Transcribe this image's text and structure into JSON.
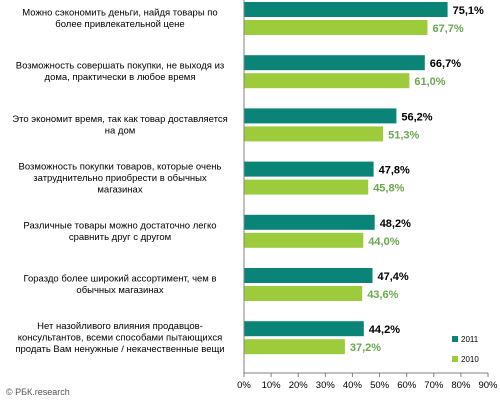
{
  "source": "© РБК.research",
  "colors": {
    "series_2011": "#0b8478",
    "series_2010": "#9ccc3c",
    "value_2011_text": "#000000",
    "value_2010_text": "#6aa84f",
    "axis": "#808080"
  },
  "chart_data": {
    "type": "bar",
    "orientation": "horizontal",
    "categories": [
      "Можно сэкономить деньги, найдя товары по более привлекательной цене",
      "Возможность совершать покупки, не выходя из дома, практически в любое время",
      "Это экономит время, так как товар доставляется на дом",
      "Возможность покупки товаров, которые очень затруднительно приобрести в обычных магазинах",
      "Различные товары можно достаточно легко сравнить друг с другом",
      "Гораздо более широкий ассортимент, чем в обычных магазинах",
      "Нет назойливого влияния продавцов-консультантов, всеми способами пытающихся продать Вам ненужные / некачественные вещи"
    ],
    "category_lines": [
      [
        "Можно сэкономить деньги, найдя товары по",
        "более привлекательной цене"
      ],
      [
        "Возможность совершать покупки, не выходя из",
        "дома, практически в любое время"
      ],
      [
        "Это экономит время, так как товар доставляется",
        "на дом"
      ],
      [
        "Возможность покупки товаров, которые очень",
        "затруднительно приобрести в обычных",
        "магазинах"
      ],
      [
        "Различные товары можно достаточно легко",
        "сравнить друг с другом"
      ],
      [
        "Гораздо более широкий ассортимент, чем в",
        "обычных магазинах"
      ],
      [
        "Нет назойливого влияния продавцов-",
        "консультантов, всеми способами пытающихся",
        "продать Вам ненужные / некачественные вещи"
      ]
    ],
    "series": [
      {
        "name": "2011",
        "values": [
          75.1,
          66.7,
          56.2,
          47.8,
          48.2,
          47.4,
          44.2
        ],
        "labels": [
          "75,1%",
          "66,7%",
          "56,2%",
          "47,8%",
          "48,2%",
          "47,4%",
          "44,2%"
        ]
      },
      {
        "name": "2010",
        "values": [
          67.7,
          61.0,
          51.3,
          45.8,
          44.0,
          43.6,
          37.2
        ],
        "labels": [
          "67,7%",
          "61,0%",
          "51,3%",
          "45,8%",
          "44,0%",
          "43,6%",
          "37,2%"
        ]
      }
    ],
    "xlim": [
      0,
      90
    ],
    "ticks": [
      0,
      10,
      20,
      30,
      40,
      50,
      60,
      70,
      80,
      90
    ],
    "tick_labels": [
      "0%",
      "10%",
      "20%",
      "30%",
      "40%",
      "50%",
      "60%",
      "70%",
      "80%",
      "90%"
    ],
    "title": "",
    "xlabel": "",
    "ylabel": "",
    "grid": false,
    "legend_position": "bottom-right"
  }
}
